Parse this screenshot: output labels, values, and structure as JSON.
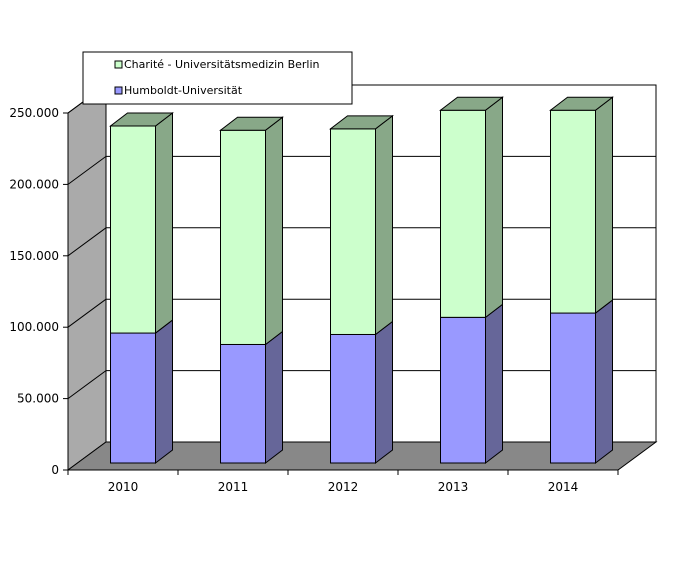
{
  "chart_data": {
    "type": "bar",
    "stacked": true,
    "three_d": true,
    "categories": [
      "2010",
      "2011",
      "2012",
      "2013",
      "2014"
    ],
    "series": [
      {
        "name": "Humboldt-Universität",
        "values": [
          91000,
          83000,
          90000,
          102000,
          105000
        ],
        "color": "#9999ff",
        "side_color": "#666699"
      },
      {
        "name": "Charité - Universitätsmedizin Berlin",
        "values": [
          145000,
          150000,
          144000,
          145000,
          142000
        ],
        "color": "#ccffcc",
        "side_color": "#88a888"
      }
    ],
    "ylim": [
      0,
      250000
    ],
    "y_ticks": [
      "0",
      "50.000",
      "100.000",
      "150.000",
      "200.000",
      "250.000"
    ],
    "grid": true,
    "legend_position": "top",
    "colors": {
      "wall": "#ffffff",
      "side_wall": "#aaaaaa",
      "floor": "#888888",
      "grid": "#000000"
    }
  }
}
